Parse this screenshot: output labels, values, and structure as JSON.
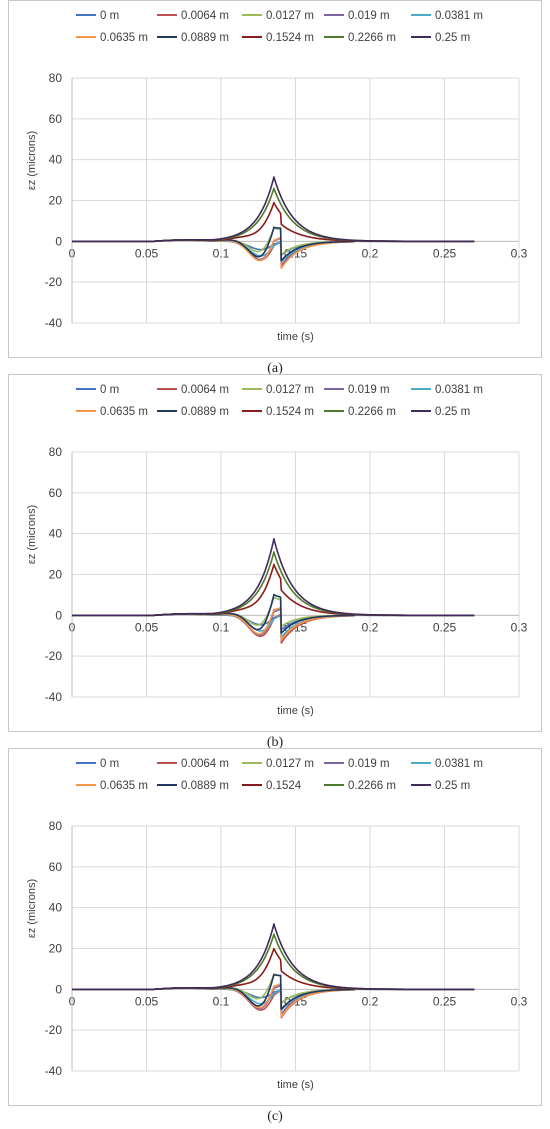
{
  "colors": [
    "#4472C4",
    "#C0504D",
    "#9BBB59",
    "#8064A2",
    "#4BACC6",
    "#F79646",
    "#1F3864",
    "#8B1A1A",
    "#4F7A28",
    "#3F2A5A"
  ],
  "chart_data": [
    {
      "type": "line",
      "caption": "(a)",
      "xlabel": "time (s)",
      "ylabel": "εz (microns)",
      "xlim": [
        0,
        0.3
      ],
      "ylim": [
        -40,
        80
      ],
      "xticks": [
        "0",
        "0.05",
        "0.1",
        "0.15",
        "0.2",
        "0.25",
        "0.3"
      ],
      "yticks": [
        "80",
        "60",
        "40",
        "20",
        "0",
        "-20",
        "-40"
      ],
      "legend_position": "top",
      "series": [
        {
          "name": "0 m",
          "peak": 2,
          "neg1": -5,
          "neg2": -8
        },
        {
          "name": "0.0064 m",
          "peak": 6,
          "neg1": -12,
          "neg2": -17
        },
        {
          "name": "0.0127 m",
          "peak": 14,
          "neg1": -11,
          "neg2": -16
        },
        {
          "name": "0.019 m",
          "peak": 9,
          "neg1": -13,
          "neg2": -18
        },
        {
          "name": "0.0381 m",
          "peak": 4,
          "neg1": -9,
          "neg2": -13
        },
        {
          "name": "0.0635 m",
          "peak": 10,
          "neg1": -14,
          "neg2": -20
        },
        {
          "name": "0.0889 m",
          "peak": 17,
          "neg1": -15,
          "neg2": -21
        },
        {
          "name": "0.1524 m",
          "peak": 21,
          "neg1": -3,
          "neg2": -6
        },
        {
          "name": "0.2266 m",
          "peak": 26,
          "neg1": 0,
          "neg2": 0
        },
        {
          "name": "0.25 m",
          "peak": 31.5,
          "neg1": 0,
          "neg2": 0
        }
      ]
    },
    {
      "type": "line",
      "caption": "(b)",
      "xlabel": "time (s)",
      "ylabel": "εz (microns)",
      "xlim": [
        0,
        0.3
      ],
      "ylim": [
        -40,
        80
      ],
      "xticks": [
        "0",
        "0.05",
        "0.1",
        "0.15",
        "0.2",
        "0.25",
        "0.3"
      ],
      "yticks": [
        "80",
        "60",
        "40",
        "20",
        "0",
        "-20",
        "-40"
      ],
      "legend_position": "top",
      "series": [
        {
          "name": "0 m",
          "peak": 3,
          "neg1": -6,
          "neg2": -9
        },
        {
          "name": "0.0064 m",
          "peak": 8,
          "neg1": -14,
          "neg2": -19
        },
        {
          "name": "0.0127 m",
          "peak": 17,
          "neg1": -12,
          "neg2": -17
        },
        {
          "name": "0.019 m",
          "peak": 12,
          "neg1": -15,
          "neg2": -20
        },
        {
          "name": "0.0381 m",
          "peak": 5,
          "neg1": -10,
          "neg2": -14
        },
        {
          "name": "0.0635 m",
          "peak": 13,
          "neg1": -15,
          "neg2": -21
        },
        {
          "name": "0.0889 m",
          "peak": 21,
          "neg1": -16,
          "neg2": -23
        },
        {
          "name": "0.1524 m",
          "peak": 27,
          "neg1": -3,
          "neg2": -6
        },
        {
          "name": "0.2266 m",
          "peak": 31,
          "neg1": 0,
          "neg2": 0
        },
        {
          "name": "0.25 m",
          "peak": 37.5,
          "neg1": 0,
          "neg2": 0
        }
      ]
    },
    {
      "type": "line",
      "caption": "(c)",
      "xlabel": "time (s)",
      "ylabel": "εz (microns)",
      "xlim": [
        0,
        0.3
      ],
      "ylim": [
        -40,
        80
      ],
      "xticks": [
        "0",
        "0.05",
        "0.1",
        "0.15",
        "0.2",
        "0.25",
        "0.3"
      ],
      "yticks": [
        "80",
        "60",
        "40",
        "20",
        "0",
        "-20",
        "-40"
      ],
      "legend_position": "top",
      "series": [
        {
          "name": "0 m",
          "peak": 2,
          "neg1": -5,
          "neg2": -8
        },
        {
          "name": "0.0064 m",
          "peak": 6,
          "neg1": -13,
          "neg2": -18
        },
        {
          "name": "0.0127 m",
          "peak": 15,
          "neg1": -11,
          "neg2": -17
        },
        {
          "name": "0.019 m",
          "peak": 10,
          "neg1": -14,
          "neg2": -19
        },
        {
          "name": "0.0381 m",
          "peak": 4,
          "neg1": -9,
          "neg2": -13
        },
        {
          "name": "0.0635 m",
          "peak": 11,
          "neg1": -14,
          "neg2": -21
        },
        {
          "name": "0.0889 m",
          "peak": 18,
          "neg1": -16,
          "neg2": -22
        },
        {
          "name": "0.1524",
          "peak": 22,
          "neg1": -3,
          "neg2": -6
        },
        {
          "name": "0.2266 m",
          "peak": 27,
          "neg1": 0,
          "neg2": 0
        },
        {
          "name": "0.25 m",
          "peak": 32,
          "neg1": 0,
          "neg2": 0
        }
      ]
    }
  ]
}
